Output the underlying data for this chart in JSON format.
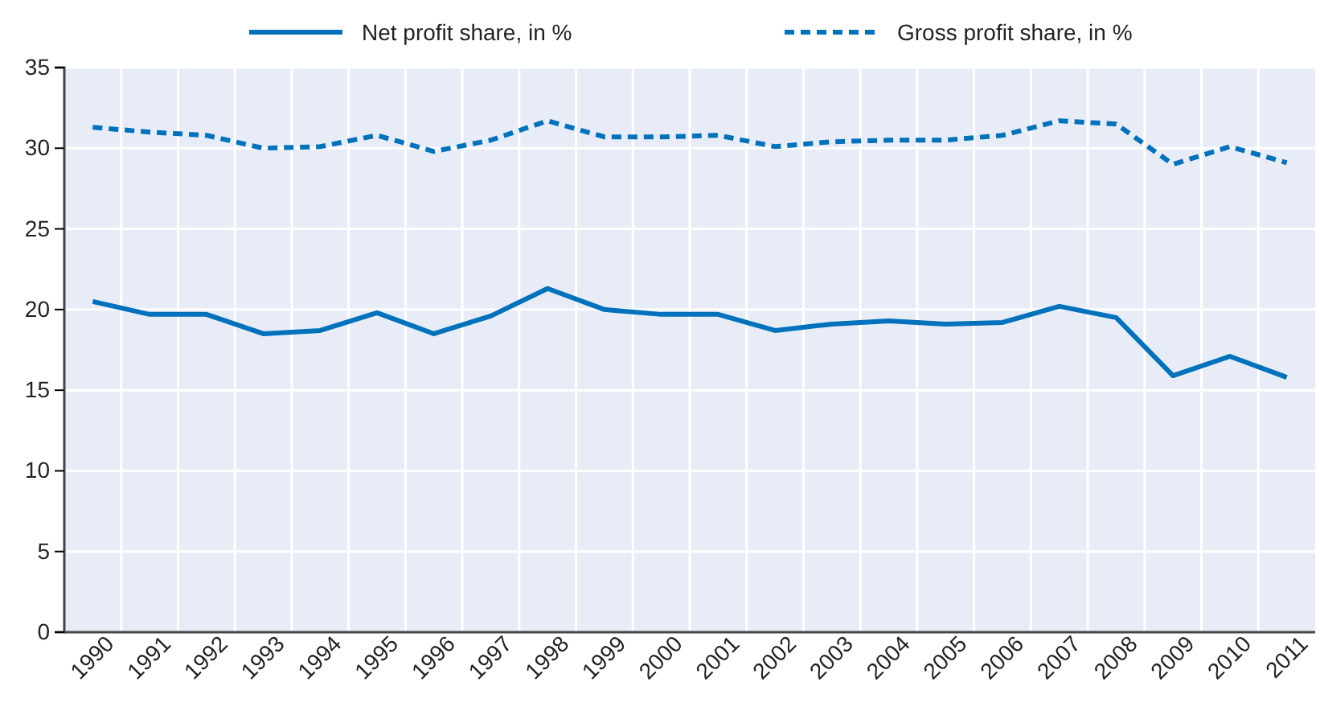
{
  "chart_data": {
    "type": "line",
    "categories": [
      "1990",
      "1991",
      "1992",
      "1993",
      "1994",
      "1995",
      "1996",
      "1997",
      "1998",
      "1999",
      "2000",
      "2001",
      "2002",
      "2003",
      "2004",
      "2005",
      "2006",
      "2007",
      "2008",
      "2009",
      "2010",
      "2011"
    ],
    "series": [
      {
        "name": "Net profit share, in %",
        "color": "#0072bc",
        "line_style": "solid",
        "values": [
          20.5,
          19.7,
          19.7,
          18.5,
          18.7,
          19.8,
          18.5,
          19.6,
          21.3,
          20.0,
          19.7,
          19.7,
          18.7,
          19.1,
          19.3,
          19.1,
          19.2,
          20.2,
          19.5,
          15.9,
          17.1,
          15.8
        ]
      },
      {
        "name": "Gross profit share, in %",
        "color": "#0072bc",
        "line_style": "dashed",
        "values": [
          31.3,
          31.0,
          30.8,
          30.0,
          30.1,
          30.8,
          29.8,
          30.5,
          31.7,
          30.7,
          30.7,
          30.8,
          30.1,
          30.4,
          30.5,
          30.5,
          30.8,
          31.7,
          31.5,
          29.0,
          30.1,
          29.1
        ]
      }
    ],
    "ylim": [
      0,
      35
    ],
    "yticks": [
      0,
      5,
      10,
      15,
      20,
      25,
      30,
      35
    ],
    "grid": true,
    "legend": "top",
    "marker": "none"
  }
}
